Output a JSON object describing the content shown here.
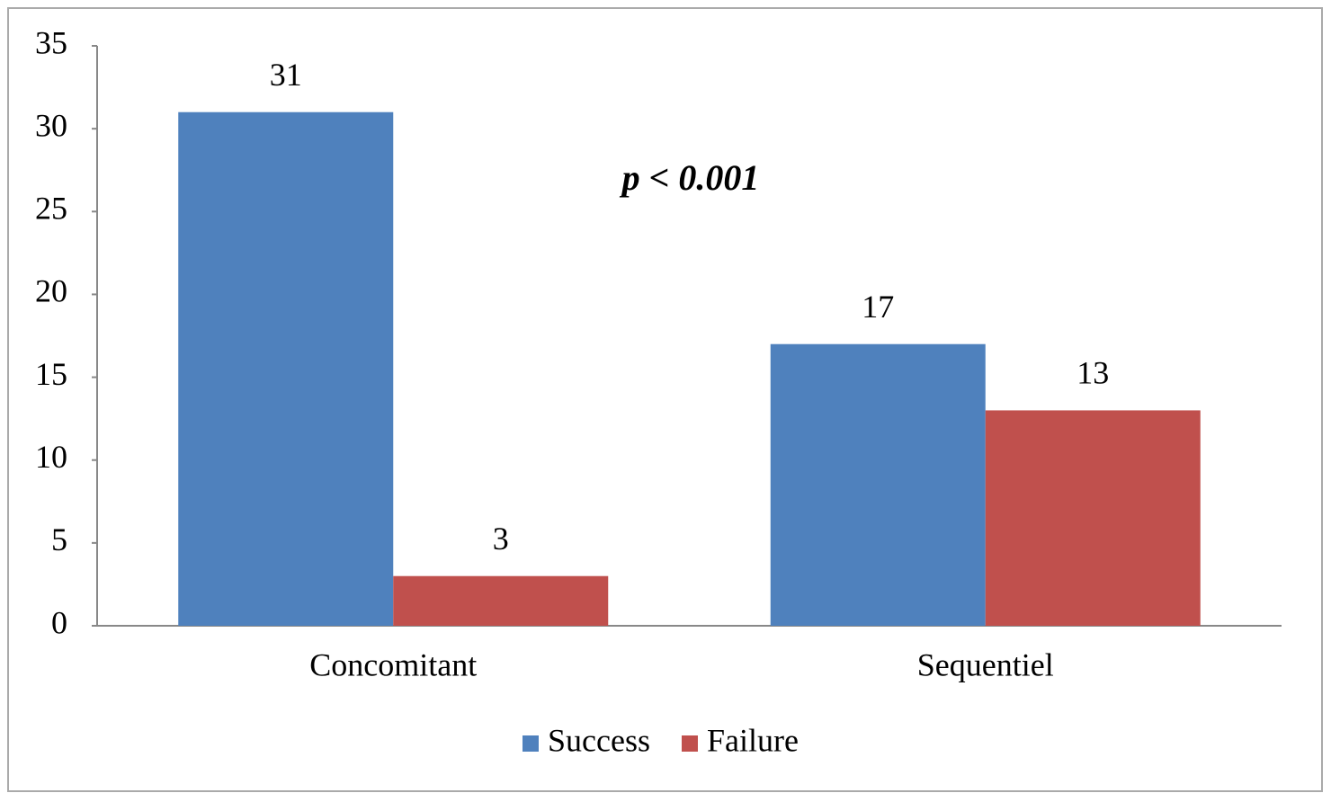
{
  "chart_data": {
    "type": "bar",
    "categories": [
      "Concomitant",
      "Sequentiel"
    ],
    "series": [
      {
        "name": "Success",
        "color": "#4f81bd",
        "values": [
          31,
          17
        ]
      },
      {
        "name": "Failure",
        "color": "#c0504d",
        "values": [
          3,
          13
        ]
      }
    ],
    "ylim": [
      0,
      35
    ],
    "yticks": [
      0,
      5,
      10,
      15,
      20,
      25,
      30,
      35
    ],
    "grid": false,
    "legend": "bottom",
    "annotations": [
      "p < 0.001"
    ]
  }
}
